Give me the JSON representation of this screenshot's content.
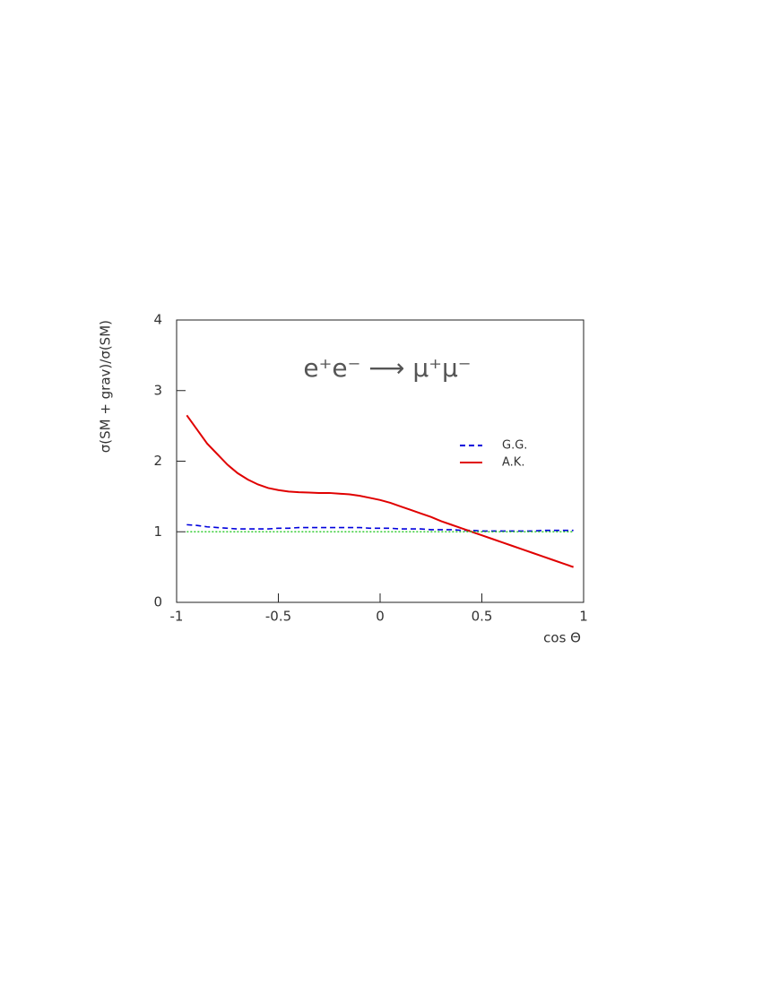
{
  "chart_data": {
    "type": "line",
    "annotation": "e⁺e⁻ ⟶ μ⁺μ⁻",
    "xlabel": "cos Θ",
    "ylabel": "σ(SM + grav)/σ(SM)",
    "x": [
      -0.95,
      -0.9,
      -0.85,
      -0.8,
      -0.75,
      -0.7,
      -0.65,
      -0.6,
      -0.55,
      -0.5,
      -0.45,
      -0.4,
      -0.35,
      -0.3,
      -0.25,
      -0.2,
      -0.15,
      -0.1,
      -0.05,
      0,
      0.05,
      0.1,
      0.15,
      0.2,
      0.25,
      0.3,
      0.35,
      0.4,
      0.45,
      0.5,
      0.55,
      0.6,
      0.65,
      0.7,
      0.75,
      0.8,
      0.85,
      0.9,
      0.95
    ],
    "series": [
      {
        "name": "G.G.",
        "color": "#0000dd",
        "dash": "dashed",
        "values": [
          1.1,
          1.09,
          1.07,
          1.06,
          1.05,
          1.04,
          1.04,
          1.04,
          1.04,
          1.05,
          1.05,
          1.06,
          1.06,
          1.06,
          1.06,
          1.06,
          1.06,
          1.06,
          1.05,
          1.05,
          1.05,
          1.04,
          1.04,
          1.04,
          1.03,
          1.03,
          1.03,
          1.02,
          1.02,
          1.01,
          1.01,
          1.01,
          1.01,
          1.01,
          1.01,
          1.02,
          1.02,
          1.02,
          1.02
        ]
      },
      {
        "name": "A.K.",
        "color": "#e00000",
        "dash": "solid",
        "values": [
          2.65,
          2.45,
          2.25,
          2.1,
          1.95,
          1.83,
          1.74,
          1.67,
          1.62,
          1.59,
          1.57,
          1.56,
          1.555,
          1.55,
          1.55,
          1.54,
          1.53,
          1.51,
          1.48,
          1.45,
          1.41,
          1.36,
          1.31,
          1.26,
          1.21,
          1.15,
          1.1,
          1.05,
          1.0,
          0.95,
          0.9,
          0.85,
          0.8,
          0.75,
          0.7,
          0.65,
          0.6,
          0.55,
          0.5
        ]
      },
      {
        "color": "#33cc33",
        "dash": "dotted",
        "values": [
          1,
          1,
          1,
          1,
          1,
          1,
          1,
          1,
          1,
          1,
          1,
          1,
          1,
          1,
          1,
          1,
          1,
          1,
          1,
          1,
          1,
          1,
          1,
          1,
          1,
          1,
          1,
          1,
          1,
          1,
          1,
          1,
          1,
          1,
          1,
          1,
          1,
          1,
          1
        ]
      }
    ],
    "xlim": [
      -1,
      1
    ],
    "xticks": [
      -1,
      -0.5,
      0,
      0.5,
      1
    ],
    "ylim": [
      0,
      4
    ],
    "yticks": [
      0,
      1,
      2,
      3,
      4
    ],
    "grid": false
  }
}
